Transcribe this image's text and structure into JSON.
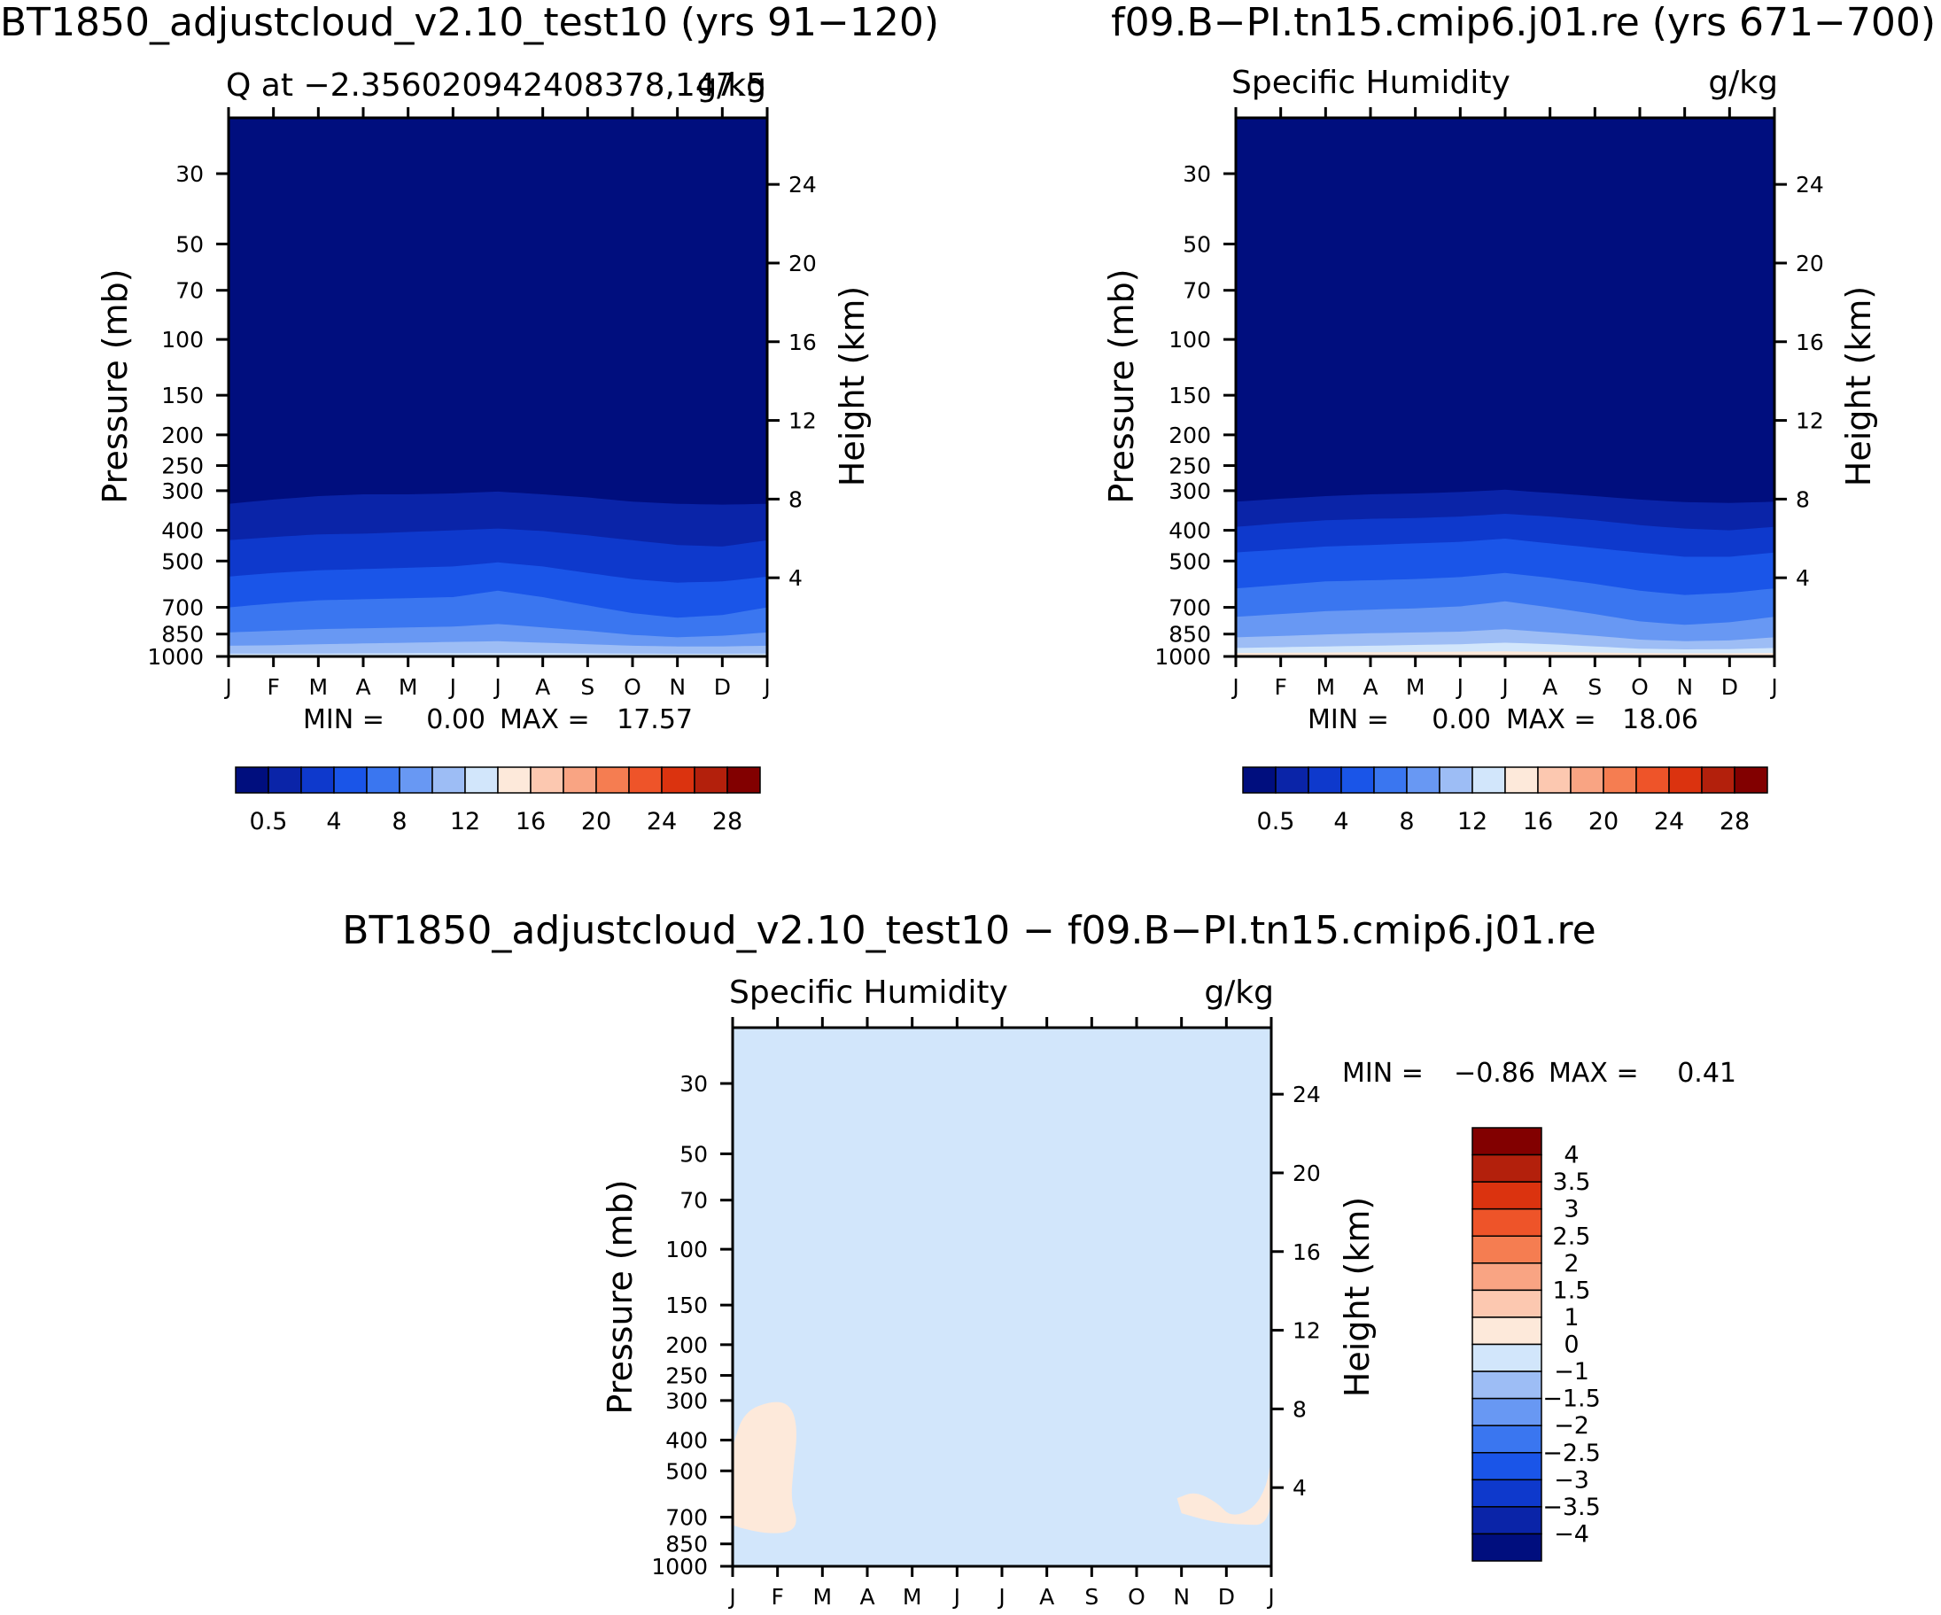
{
  "chart_data": [
    {
      "type": "contour",
      "title": "BT1850_adjustcloud_v2.10_test10 (yrs 91−120)",
      "left_subtitle": "Q at −2.356020942408378,147.5",
      "right_subtitle": "g/kg",
      "ylabel": "Pressure (mb)",
      "y2label": "Height (km)",
      "x_ticks": [
        "J",
        "F",
        "M",
        "A",
        "M",
        "J",
        "J",
        "A",
        "S",
        "O",
        "N",
        "D",
        "J"
      ],
      "y_ticks": [
        "30",
        "50",
        "70",
        "100",
        "150",
        "200",
        "250",
        "300",
        "400",
        "500",
        "700",
        "850",
        "1000"
      ],
      "y_tick_values": [
        30,
        50,
        70,
        100,
        150,
        200,
        250,
        300,
        400,
        500,
        700,
        850,
        1000
      ],
      "y2_ticks": [
        "24",
        "20",
        "16",
        "12",
        "8",
        "4"
      ],
      "y2_tick_values": [
        24,
        20,
        16,
        12,
        8,
        4
      ],
      "ylim": [
        20,
        1000
      ],
      "min_label": "MIN =",
      "min_value": "0.00",
      "max_label": "MAX =",
      "max_value": "17.57",
      "colorbar_labels": [
        "0.5",
        "4",
        "8",
        "12",
        "16",
        "20",
        "24",
        "28"
      ],
      "colorbar_colors": [
        "#000e7e",
        "#0a24a8",
        "#0e39cc",
        "#1a55e8",
        "#3a76f0",
        "#6898f3",
        "#9dbdf5",
        "#d2e6fb",
        "#fde9da",
        "#fcc8b0",
        "#f9a483",
        "#f57d51",
        "#ee5429",
        "#db330f",
        "#b3200c",
        "#820000"
      ],
      "depth_bands": [
        {
          "color": "#fde9da",
          "p": [
            996,
            996,
            996,
            996,
            996,
            996,
            996,
            996,
            996,
            996,
            996,
            996,
            996
          ]
        },
        {
          "color": "#d2e6fb",
          "p": [
            980,
            980,
            979,
            978,
            977,
            976,
            975,
            976,
            978,
            980,
            981,
            981,
            980
          ]
        },
        {
          "color": "#9dbdf5",
          "p": [
            925,
            922,
            915,
            910,
            905,
            900,
            895,
            905,
            915,
            925,
            930,
            930,
            925
          ]
        },
        {
          "color": "#6898f3",
          "p": [
            840,
            830,
            820,
            815,
            810,
            805,
            790,
            810,
            830,
            855,
            870,
            860,
            840
          ]
        },
        {
          "color": "#3a76f0",
          "p": [
            700,
            680,
            665,
            660,
            655,
            650,
            620,
            650,
            690,
            730,
            755,
            740,
            700
          ]
        },
        {
          "color": "#1a55e8",
          "p": [
            560,
            545,
            535,
            530,
            525,
            520,
            505,
            520,
            545,
            570,
            585,
            580,
            560
          ]
        },
        {
          "color": "#0e39cc",
          "p": [
            430,
            420,
            412,
            410,
            405,
            400,
            395,
            402,
            415,
            430,
            445,
            450,
            430
          ]
        },
        {
          "color": "#0a24a8",
          "p": [
            330,
            320,
            312,
            308,
            308,
            306,
            302,
            308,
            315,
            325,
            330,
            332,
            330
          ]
        }
      ]
    },
    {
      "type": "contour",
      "title": "f09.B−PI.tn15.cmip6.j01.re (yrs 671−700)",
      "left_subtitle": "Specific Humidity",
      "right_subtitle": "g/kg",
      "ylabel": "Pressure (mb)",
      "y2label": "Height (km)",
      "x_ticks": [
        "J",
        "F",
        "M",
        "A",
        "M",
        "J",
        "J",
        "A",
        "S",
        "O",
        "N",
        "D",
        "J"
      ],
      "y_ticks": [
        "30",
        "50",
        "70",
        "100",
        "150",
        "200",
        "250",
        "300",
        "400",
        "500",
        "700",
        "850",
        "1000"
      ],
      "y_tick_values": [
        30,
        50,
        70,
        100,
        150,
        200,
        250,
        300,
        400,
        500,
        700,
        850,
        1000
      ],
      "y2_ticks": [
        "24",
        "20",
        "16",
        "12",
        "8",
        "4"
      ],
      "y2_tick_values": [
        24,
        20,
        16,
        12,
        8,
        4
      ],
      "ylim": [
        20,
        1000
      ],
      "min_label": "MIN =",
      "min_value": "0.00",
      "max_label": "MAX =",
      "max_value": "18.06",
      "colorbar_labels": [
        "0.5",
        "4",
        "8",
        "12",
        "16",
        "20",
        "24",
        "28"
      ],
      "colorbar_colors": [
        "#000e7e",
        "#0a24a8",
        "#0e39cc",
        "#1a55e8",
        "#3a76f0",
        "#6898f3",
        "#9dbdf5",
        "#d2e6fb",
        "#fde9da",
        "#fcc8b0",
        "#f9a483",
        "#f57d51",
        "#ee5429",
        "#db330f",
        "#b3200c",
        "#820000"
      ],
      "depth_bands": [
        {
          "color": "#fcc8b0",
          "p": [
            990,
            990,
            990,
            990,
            990,
            990,
            990,
            990,
            990,
            990,
            990,
            990,
            990
          ]
        },
        {
          "color": "#fde9da",
          "p": [
            975,
            974,
            972,
            970,
            968,
            966,
            964,
            968,
            972,
            976,
            978,
            978,
            975
          ]
        },
        {
          "color": "#d2e6fb",
          "p": [
            940,
            935,
            930,
            925,
            920,
            915,
            905,
            915,
            930,
            945,
            950,
            948,
            940
          ]
        },
        {
          "color": "#9dbdf5",
          "p": [
            870,
            862,
            852,
            845,
            840,
            835,
            820,
            840,
            860,
            885,
            895,
            890,
            870
          ]
        },
        {
          "color": "#6898f3",
          "p": [
            750,
            735,
            720,
            712,
            705,
            695,
            670,
            700,
            735,
            775,
            795,
            780,
            750
          ]
        },
        {
          "color": "#3a76f0",
          "p": [
            610,
            595,
            580,
            575,
            570,
            562,
            545,
            565,
            590,
            620,
            640,
            630,
            610
          ]
        },
        {
          "color": "#1a55e8",
          "p": [
            470,
            460,
            450,
            445,
            440,
            435,
            425,
            440,
            455,
            470,
            485,
            485,
            470
          ]
        },
        {
          "color": "#0e39cc",
          "p": [
            390,
            380,
            372,
            368,
            366,
            362,
            355,
            362,
            372,
            385,
            395,
            400,
            390
          ]
        },
        {
          "color": "#0a24a8",
          "p": [
            325,
            318,
            312,
            308,
            306,
            303,
            298,
            305,
            312,
            320,
            326,
            328,
            325
          ]
        }
      ]
    },
    {
      "type": "contour",
      "title": "BT1850_adjustcloud_v2.10_test10 − f09.B−PI.tn15.cmip6.j01.re",
      "left_subtitle": "Specific Humidity",
      "right_subtitle": "g/kg",
      "ylabel": "Pressure (mb)",
      "y2label": "Height (km)",
      "x_ticks": [
        "J",
        "F",
        "M",
        "A",
        "M",
        "J",
        "J",
        "A",
        "S",
        "O",
        "N",
        "D",
        "J"
      ],
      "y_ticks": [
        "30",
        "50",
        "70",
        "100",
        "150",
        "200",
        "250",
        "300",
        "400",
        "500",
        "700",
        "850",
        "1000"
      ],
      "y_tick_values": [
        30,
        50,
        70,
        100,
        150,
        200,
        250,
        300,
        400,
        500,
        700,
        850,
        1000
      ],
      "y2_ticks": [
        "24",
        "20",
        "16",
        "12",
        "8",
        "4"
      ],
      "y2_tick_values": [
        24,
        20,
        16,
        12,
        8,
        4
      ],
      "ylim": [
        20,
        1000
      ],
      "min_label": "MIN =",
      "min_value": "−0.86",
      "max_label": "MAX =",
      "max_value": "0.41",
      "background_color": "#d2e6fb",
      "anomaly_color": "#fde9da",
      "anomaly_regions": [
        {
          "region": "jan-mar",
          "points": [
            [
              0.0,
              420
            ],
            [
              0.25,
              325
            ],
            [
              0.9,
              300
            ],
            [
              1.3,
              310
            ],
            [
              1.45,
              370
            ],
            [
              1.35,
              500
            ],
            [
              1.3,
              620
            ],
            [
              1.45,
              720
            ],
            [
              1.3,
              780
            ],
            [
              0.8,
              790
            ],
            [
              0.2,
              760
            ],
            [
              0.0,
              740
            ]
          ]
        },
        {
          "region": "oct-jan",
          "points": [
            [
              9.9,
              610
            ],
            [
              10.3,
              580
            ],
            [
              10.8,
              630
            ],
            [
              11.1,
              700
            ],
            [
              11.6,
              660
            ],
            [
              11.9,
              560
            ],
            [
              12.0,
              450
            ],
            [
              12.0,
              740
            ],
            [
              11.3,
              740
            ],
            [
              10.6,
              720
            ],
            [
              10.0,
              680
            ]
          ]
        }
      ],
      "colorbar_labels": [
        "4",
        "3.5",
        "3",
        "2.5",
        "2",
        "1.5",
        "1",
        "0",
        "−1",
        "−1.5",
        "−2",
        "−2.5",
        "−3",
        "−3.5",
        "−4"
      ],
      "colorbar_colors": [
        "#820000",
        "#b3200c",
        "#db330f",
        "#ee5429",
        "#f57d51",
        "#f9a483",
        "#fcc8b0",
        "#fde9da",
        "#d2e6fb",
        "#9dbdf5",
        "#6898f3",
        "#3a76f0",
        "#1a55e8",
        "#0e39cc",
        "#0a24a8",
        "#000e7e"
      ]
    }
  ]
}
